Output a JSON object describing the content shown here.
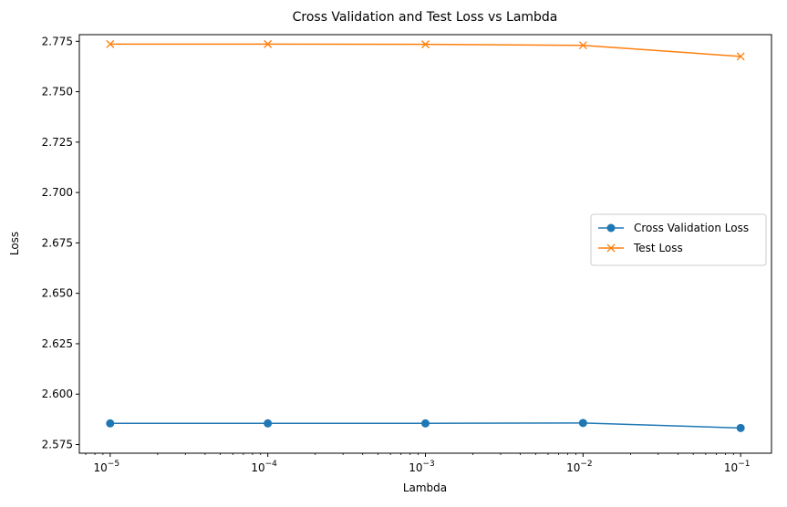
{
  "chart_data": {
    "type": "line",
    "title": "Cross Validation and Test Loss vs Lambda",
    "xlabel": "Lambda",
    "ylabel": "Loss",
    "xscale": "log",
    "x": [
      1e-05,
      0.0001,
      0.001,
      0.01,
      0.1
    ],
    "xtick_labels": [
      {
        "base": "10",
        "exp": "−5"
      },
      {
        "base": "10",
        "exp": "−4"
      },
      {
        "base": "10",
        "exp": "−3"
      },
      {
        "base": "10",
        "exp": "−2"
      },
      {
        "base": "10",
        "exp": "−1"
      }
    ],
    "yticks": [
      "2.575",
      "2.600",
      "2.625",
      "2.650",
      "2.675",
      "2.700",
      "2.725",
      "2.750",
      "2.775"
    ],
    "ylim": [
      2.5707,
      2.7783
    ],
    "grid": false,
    "legend_position": "center-right",
    "series": [
      {
        "name": "Cross Validation Loss",
        "marker": "circle",
        "color": "#1f77b4",
        "values": [
          2.5855,
          2.5855,
          2.5855,
          2.5857,
          2.5832
        ]
      },
      {
        "name": "Test Loss",
        "marker": "x",
        "color": "#ff7f0e",
        "values": [
          2.7736,
          2.7736,
          2.7735,
          2.773,
          2.7675
        ]
      }
    ]
  }
}
